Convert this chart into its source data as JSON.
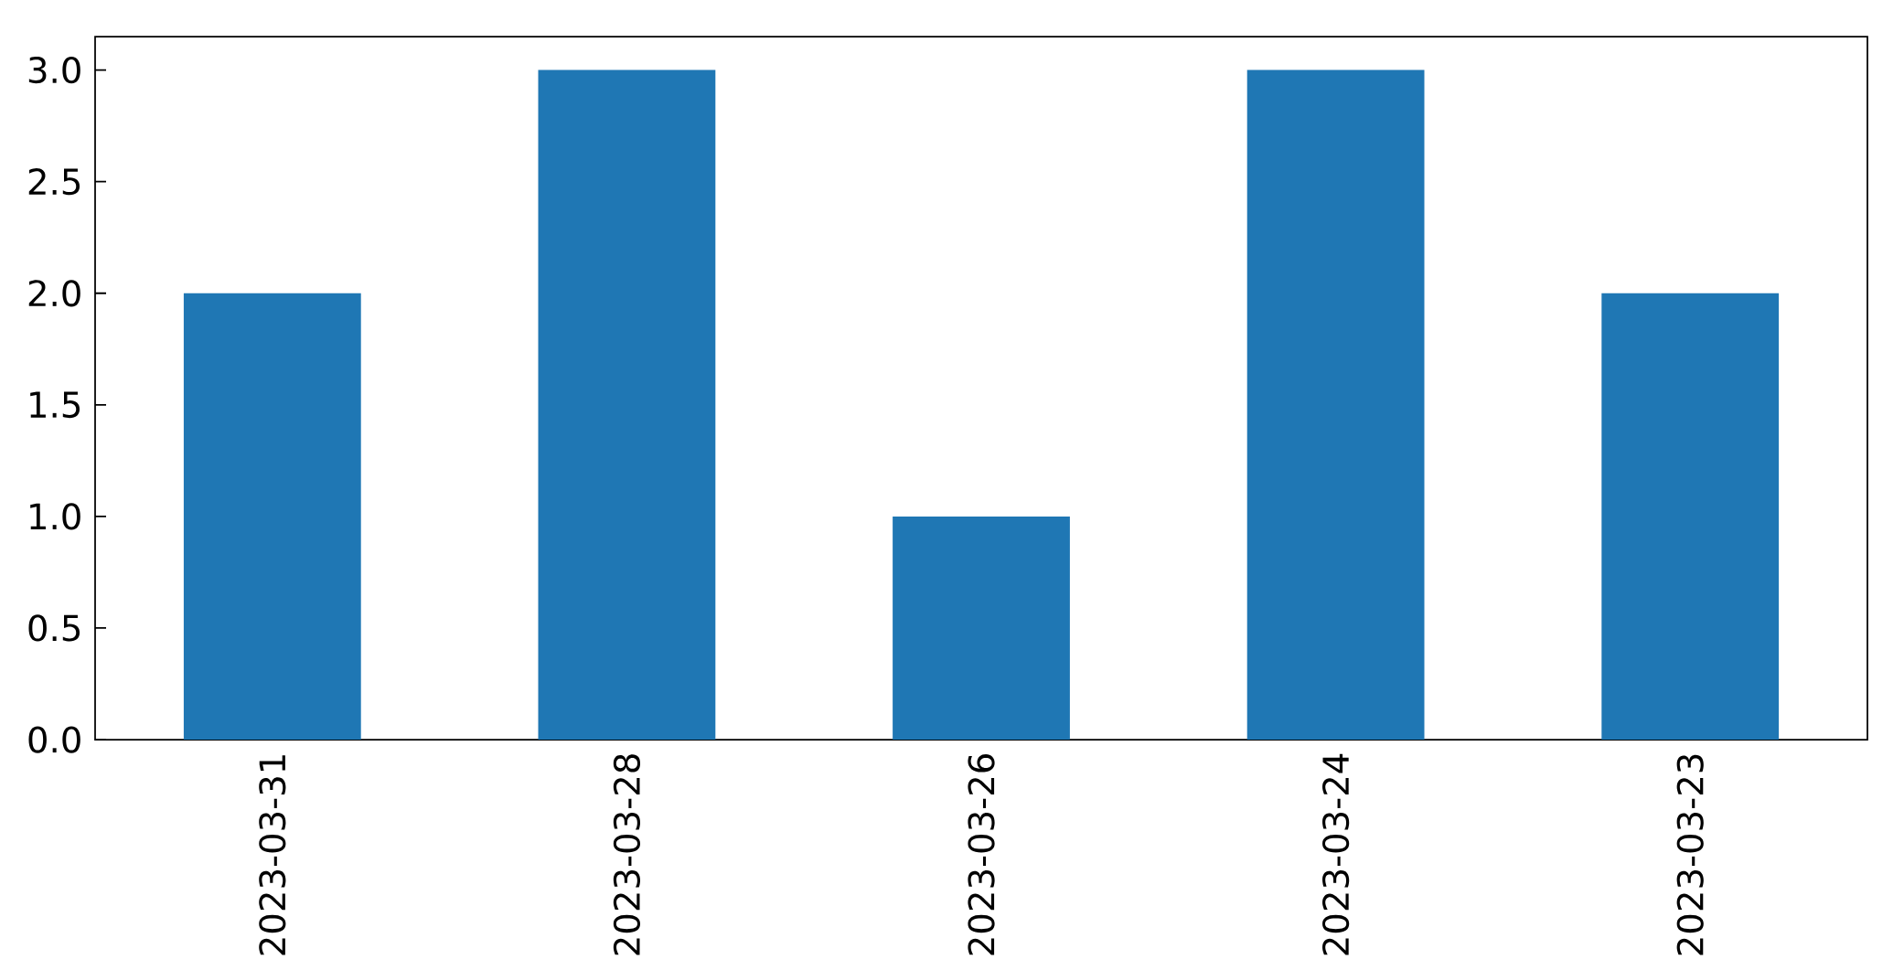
{
  "chart_data": {
    "type": "bar",
    "categories": [
      "2023-03-31",
      "2023-03-28",
      "2023-03-26",
      "2023-03-24",
      "2023-03-23"
    ],
    "values": [
      2,
      3,
      1,
      3,
      2
    ],
    "color": "#1f77b4",
    "ylim": [
      0,
      3.15
    ],
    "yticks": [
      {
        "value": 0,
        "label": "0.0"
      },
      {
        "value": 0.5,
        "label": "0.5"
      },
      {
        "value": 1,
        "label": "1.0"
      },
      {
        "value": 1.5,
        "label": "1.5"
      },
      {
        "value": 2,
        "label": "2.0"
      },
      {
        "value": 2.5,
        "label": "2.5"
      },
      {
        "value": 3,
        "label": "3.0"
      }
    ]
  }
}
